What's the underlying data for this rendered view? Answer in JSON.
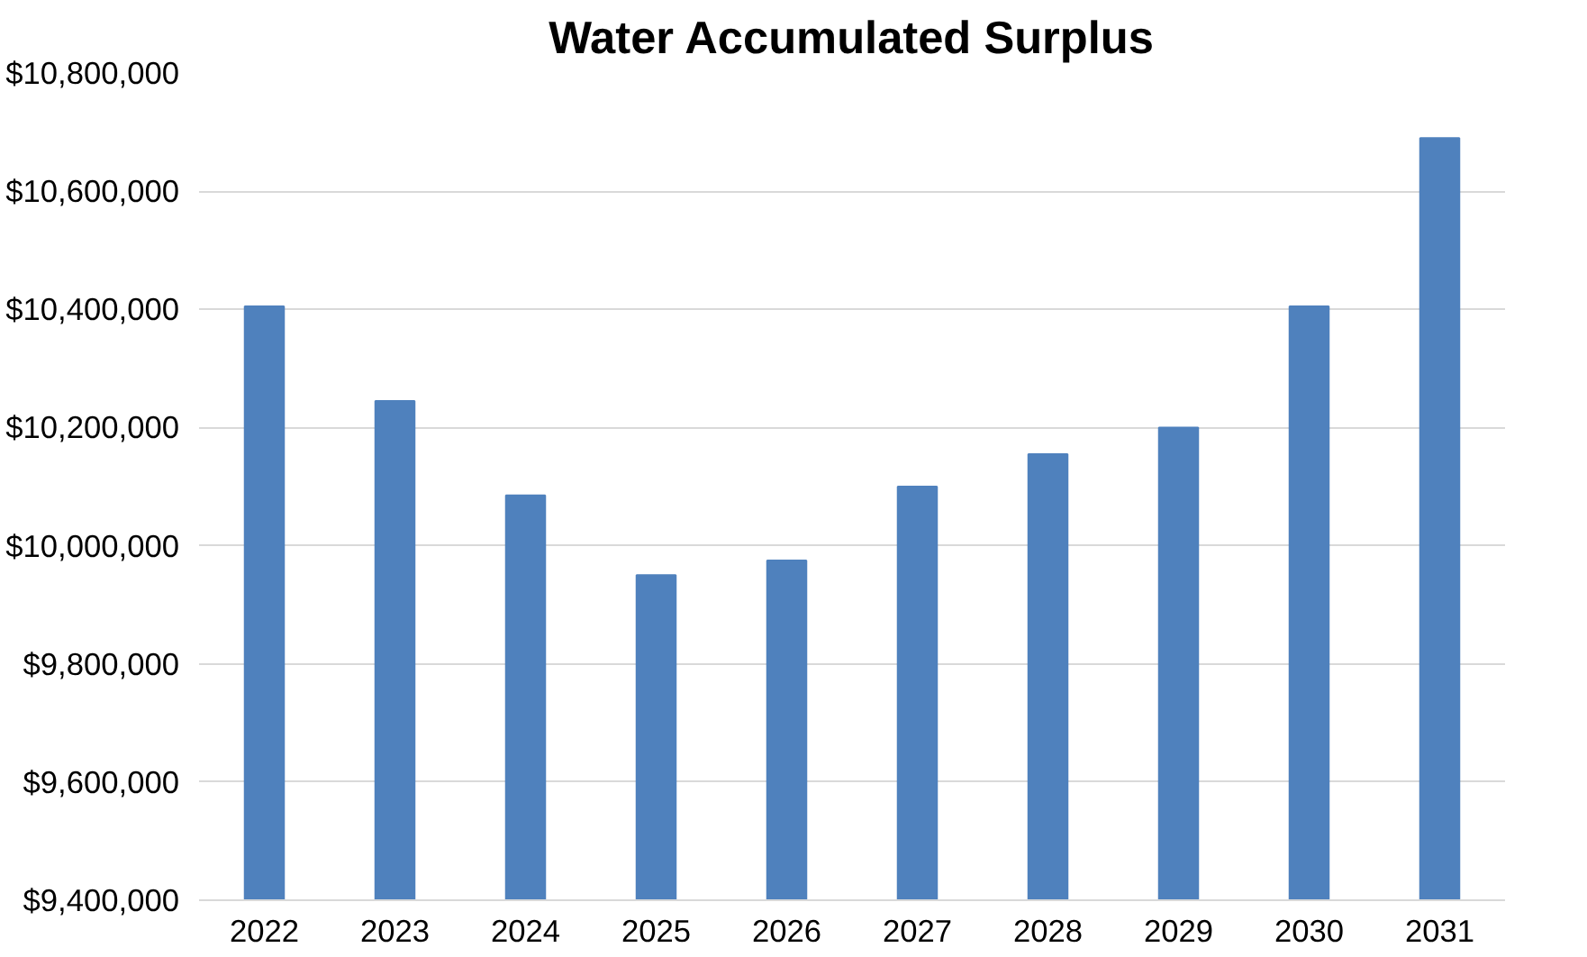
{
  "chart_data": {
    "type": "bar",
    "title": "Water Accumulated Surplus",
    "categories": [
      "2022",
      "2023",
      "2024",
      "2025",
      "2026",
      "2027",
      "2028",
      "2029",
      "2030",
      "2031"
    ],
    "values": [
      10405000,
      10245000,
      10085000,
      9950000,
      9975000,
      10100000,
      10155000,
      10200000,
      10405000,
      10690000
    ],
    "color": "#4f81bd",
    "ylim": [
      9400000,
      10800000
    ],
    "yticks": [
      {
        "value": 9400000,
        "label": "$9,400,000"
      },
      {
        "value": 9600000,
        "label": "$9,600,000"
      },
      {
        "value": 9800000,
        "label": "$9,800,000"
      },
      {
        "value": 10000000,
        "label": "$10,000,000"
      },
      {
        "value": 10200000,
        "label": "$10,200,000"
      },
      {
        "value": 10400000,
        "label": "$10,400,000"
      },
      {
        "value": 10600000,
        "label": "$10,600,000"
      },
      {
        "value": 10800000,
        "label": "$10,800,000"
      }
    ],
    "grid": "y"
  }
}
